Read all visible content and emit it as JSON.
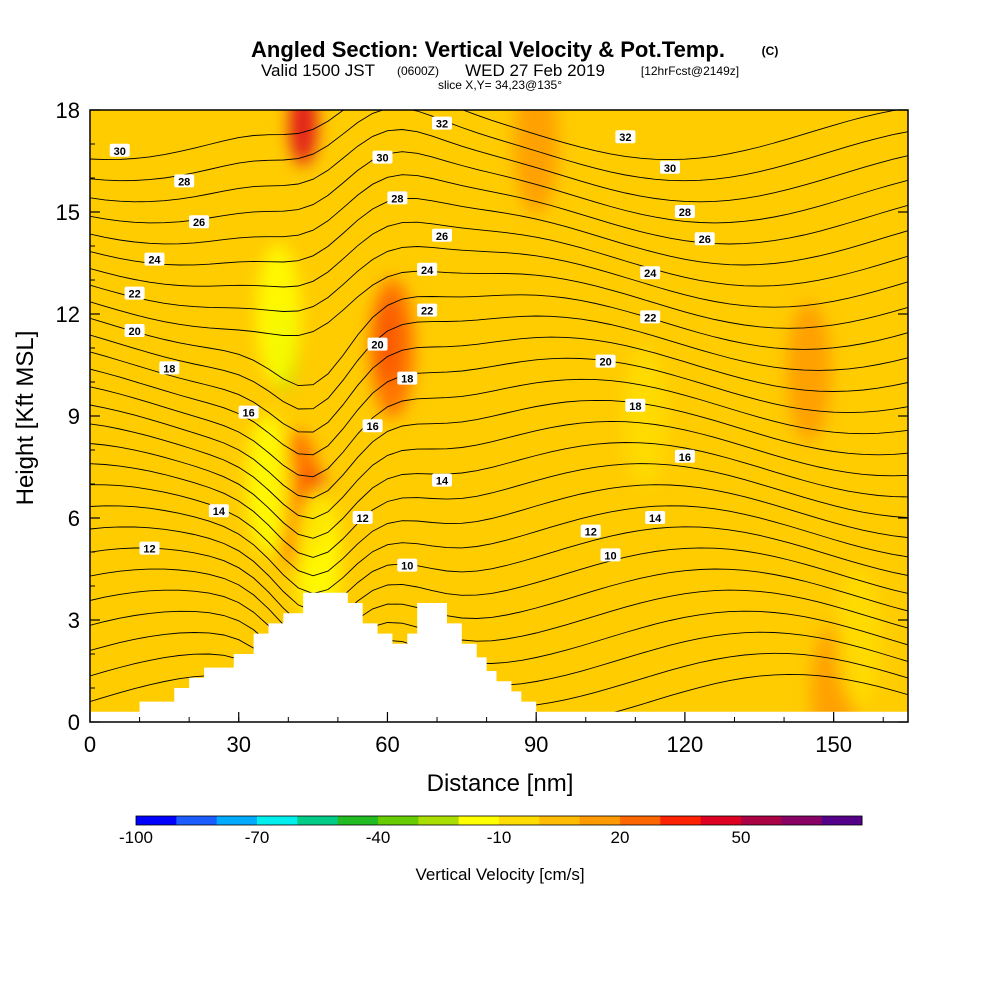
{
  "chart_data": {
    "type": "heatmap",
    "title": "Angled Section: Vertical Velocity & Pot.Temp.",
    "title_unit": "(C)",
    "subtitle_main": "Valid 1500 JST",
    "subtitle_utc": "(0600Z)",
    "subtitle_date": "WED 27 Feb 2019",
    "subtitle_fcst": "[12hrFcst@2149z]",
    "subtitle_slice": "slice X,Y= 34,23@135°",
    "xlabel": "Distance [nm]",
    "ylabel": "Height [Kft MSL]",
    "xlim": [
      0,
      165
    ],
    "ylim": [
      0,
      18
    ],
    "xticks": [
      "0",
      "30",
      "60",
      "90",
      "120",
      "150"
    ],
    "yticks": [
      "0",
      "3",
      "6",
      "9",
      "12",
      "15",
      "18"
    ],
    "colorbar": {
      "title": "Vertical Velocity [cm/s]",
      "tick_labels": [
        "-100",
        "-70",
        "-40",
        "-10",
        "20",
        "50"
      ],
      "colors": [
        "#0000ff",
        "#1a5cff",
        "#00aaff",
        "#00eeee",
        "#00cc88",
        "#22bb22",
        "#66cc00",
        "#aadd00",
        "#ffff00",
        "#ffdd00",
        "#ffbb00",
        "#ff9900",
        "#ff6600",
        "#ff2200",
        "#dd0022",
        "#aa0044",
        "#880066",
        "#550088"
      ]
    },
    "terrain_profile": [
      [
        0,
        0.3
      ],
      [
        10,
        0.3
      ],
      [
        10,
        0.6
      ],
      [
        17,
        0.6
      ],
      [
        17,
        1.0
      ],
      [
        20,
        1.0
      ],
      [
        20,
        1.3
      ],
      [
        23,
        1.3
      ],
      [
        23,
        1.6
      ],
      [
        29,
        1.6
      ],
      [
        29,
        2.0
      ],
      [
        33,
        2.0
      ],
      [
        33,
        2.6
      ],
      [
        36,
        2.6
      ],
      [
        36,
        2.9
      ],
      [
        39,
        2.9
      ],
      [
        39,
        3.2
      ],
      [
        43,
        3.2
      ],
      [
        43,
        3.8
      ],
      [
        52,
        3.8
      ],
      [
        52,
        3.5
      ],
      [
        55,
        3.5
      ],
      [
        55,
        2.9
      ],
      [
        58,
        2.9
      ],
      [
        58,
        2.6
      ],
      [
        61,
        2.6
      ],
      [
        61,
        2.3
      ],
      [
        64,
        2.3
      ],
      [
        64,
        2.6
      ],
      [
        66,
        2.6
      ],
      [
        66,
        3.5
      ],
      [
        72,
        3.5
      ],
      [
        72,
        2.9
      ],
      [
        75,
        2.9
      ],
      [
        75,
        2.3
      ],
      [
        78,
        2.3
      ],
      [
        78,
        1.9
      ],
      [
        80,
        1.9
      ],
      [
        80,
        1.5
      ],
      [
        82,
        1.5
      ],
      [
        82,
        1.2
      ],
      [
        85,
        1.2
      ],
      [
        85,
        0.9
      ],
      [
        87,
        0.9
      ],
      [
        87,
        0.6
      ],
      [
        90,
        0.6
      ],
      [
        90,
        0.3
      ],
      [
        165,
        0.3
      ]
    ],
    "velocity_cells": [
      {
        "x": 45,
        "z": 6.3,
        "value": 40
      },
      {
        "x": 42,
        "z": 6.5,
        "value": 20
      },
      {
        "x": 60,
        "z": 11.2,
        "value": 40
      },
      {
        "x": 61,
        "z": 11.0,
        "value": 20
      },
      {
        "x": 43,
        "z": 17.6,
        "value": 40
      },
      {
        "x": 39,
        "z": 11.0,
        "value": -30
      },
      {
        "x": 38,
        "z": 12.0,
        "value": -20
      },
      {
        "x": 36,
        "z": 7.0,
        "value": -20
      },
      {
        "x": 46,
        "z": 4.8,
        "value": -20
      },
      {
        "x": 112,
        "z": 9.0,
        "value": -5
      },
      {
        "x": 90,
        "z": 17.0,
        "value": 10
      },
      {
        "x": 145,
        "z": 10.3,
        "value": 10
      },
      {
        "x": 150,
        "z": 0.8,
        "value": 10
      },
      {
        "x": 155,
        "z": 2.5,
        "value": -5
      }
    ],
    "isotherm_labels": [
      {
        "value": "30",
        "x": 6,
        "z": 16.8
      },
      {
        "value": "28",
        "x": 19,
        "z": 15.9
      },
      {
        "value": "26",
        "x": 22,
        "z": 14.7
      },
      {
        "value": "24",
        "x": 13,
        "z": 13.6
      },
      {
        "value": "22",
        "x": 9,
        "z": 12.6
      },
      {
        "value": "20",
        "x": 9,
        "z": 11.5
      },
      {
        "value": "18",
        "x": 16,
        "z": 10.4
      },
      {
        "value": "16",
        "x": 32,
        "z": 9.1
      },
      {
        "value": "14",
        "x": 26,
        "z": 6.2
      },
      {
        "value": "12",
        "x": 12,
        "z": 5.1
      },
      {
        "value": "32",
        "x": 71,
        "z": 17.6
      },
      {
        "value": "30",
        "x": 59,
        "z": 16.6
      },
      {
        "value": "28",
        "x": 62,
        "z": 15.4
      },
      {
        "value": "26",
        "x": 71,
        "z": 14.3
      },
      {
        "value": "24",
        "x": 68,
        "z": 13.3
      },
      {
        "value": "22",
        "x": 68,
        "z": 12.1
      },
      {
        "value": "20",
        "x": 58,
        "z": 11.1
      },
      {
        "value": "18",
        "x": 64,
        "z": 10.1
      },
      {
        "value": "16",
        "x": 57,
        "z": 8.7
      },
      {
        "value": "14",
        "x": 71,
        "z": 7.1
      },
      {
        "value": "12",
        "x": 55,
        "z": 6.0
      },
      {
        "value": "10",
        "x": 64,
        "z": 4.6
      },
      {
        "value": "32",
        "x": 108,
        "z": 17.2
      },
      {
        "value": "30",
        "x": 117,
        "z": 16.3
      },
      {
        "value": "28",
        "x": 120,
        "z": 15.0
      },
      {
        "value": "26",
        "x": 124,
        "z": 14.2
      },
      {
        "value": "24",
        "x": 113,
        "z": 13.2
      },
      {
        "value": "22",
        "x": 113,
        "z": 11.9
      },
      {
        "value": "20",
        "x": 104,
        "z": 10.6
      },
      {
        "value": "18",
        "x": 110,
        "z": 9.3
      },
      {
        "value": "16",
        "x": 120,
        "z": 7.8
      },
      {
        "value": "14",
        "x": 114,
        "z": 6.0
      },
      {
        "value": "12",
        "x": 101,
        "z": 5.6
      },
      {
        "value": "10",
        "x": 105,
        "z": 4.9
      }
    ]
  }
}
